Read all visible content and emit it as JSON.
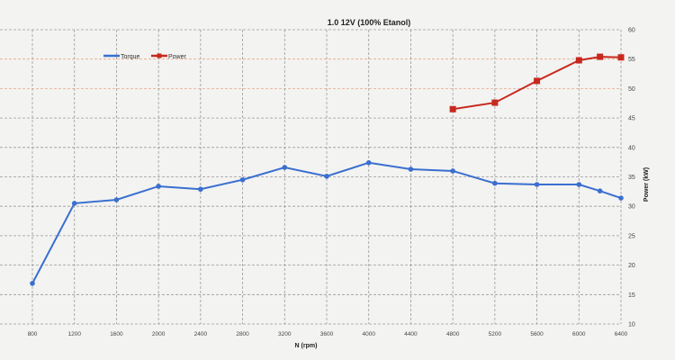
{
  "chart_data": {
    "type": "line",
    "title": "1.0 12V (100% Etanol)",
    "xlabel": "N (rpm)",
    "ylabel": "Power (kW)",
    "xlim": [
      550,
      6400
    ],
    "ylim": [
      10,
      60
    ],
    "x_ticks": [
      800,
      1200,
      1600,
      2000,
      2400,
      2800,
      3200,
      3600,
      4000,
      4400,
      4800,
      5200,
      5600,
      6000,
      6400
    ],
    "y_ticks": [
      10,
      15,
      20,
      25,
      30,
      35,
      40,
      45,
      50,
      55,
      60
    ],
    "grid": true,
    "legend_position": "top-left",
    "series": [
      {
        "name": "Torque",
        "color": "#3a6fd0",
        "x": [
          800,
          1200,
          1600,
          2000,
          2400,
          2800,
          3200,
          3600,
          4000,
          4400,
          4800,
          5200,
          5600,
          6000,
          6200,
          6400
        ],
        "y": [
          16.9,
          30.5,
          31.1,
          33.4,
          32.9,
          34.5,
          36.6,
          35.1,
          37.4,
          36.3,
          36.0,
          33.9,
          33.7,
          33.7,
          32.6,
          31.4
        ]
      },
      {
        "name": "Power",
        "color": "#c8281e",
        "x": [
          4800,
          5200,
          5600,
          6000,
          6200,
          6400
        ],
        "y": [
          46.5,
          47.6,
          51.3,
          54.8,
          55.4,
          55.3
        ]
      }
    ]
  }
}
